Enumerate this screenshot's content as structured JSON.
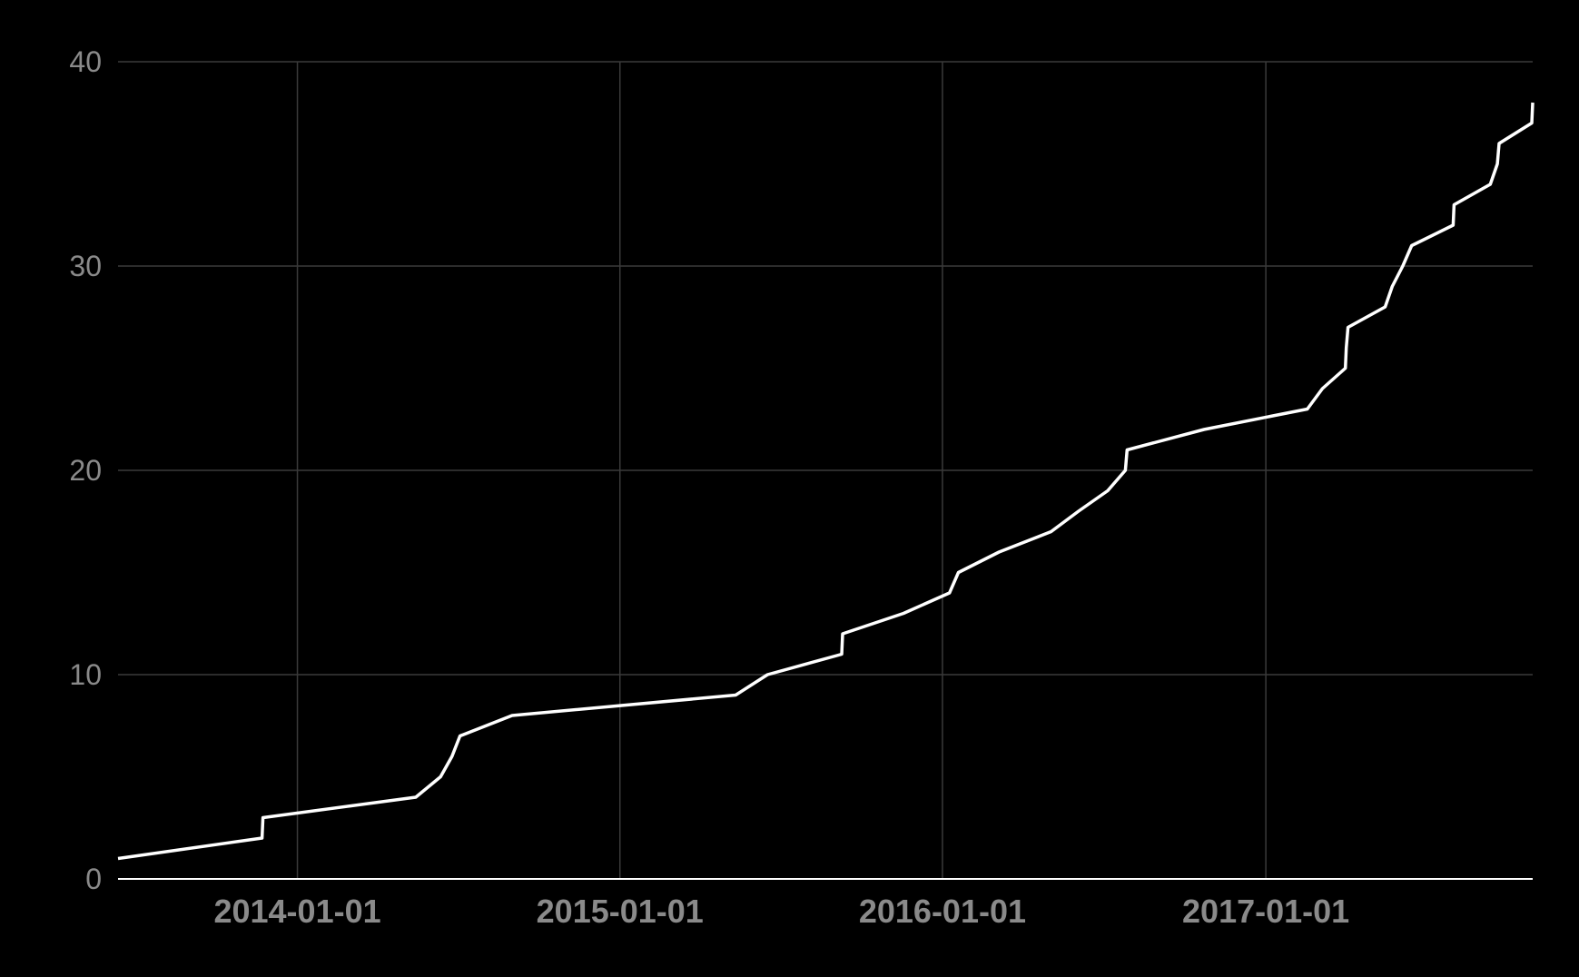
{
  "chart_data": {
    "type": "line",
    "title": "",
    "xlabel": "",
    "ylabel": "",
    "x_type": "date",
    "xlim": [
      "2013-06-12",
      "2017-10-30"
    ],
    "ylim": [
      0,
      40
    ],
    "x_ticks": [
      "2014-01-01",
      "2015-01-01",
      "2016-01-01",
      "2017-01-01"
    ],
    "y_ticks": [
      0,
      10,
      20,
      30,
      40
    ],
    "grid": true,
    "legend": "none",
    "colors": {
      "background": "#000000",
      "line": "#ffffff",
      "grid": "#3a3a3a",
      "tick_label": "#8a8a8a"
    },
    "series": [
      {
        "x": [
          "2013-06-12",
          "2013-11-22",
          "2013-11-23",
          "2014-05-15",
          "2014-06-12",
          "2014-06-25",
          "2014-07-04",
          "2014-09-01",
          "2015-05-12",
          "2015-06-17",
          "2015-09-09",
          "2015-09-10",
          "2015-11-18",
          "2016-01-09",
          "2016-01-19",
          "2016-03-05",
          "2016-05-03",
          "2016-06-03",
          "2016-07-06",
          "2016-07-26",
          "2016-07-28",
          "2016-10-23",
          "2017-02-17",
          "2017-03-06",
          "2017-04-01",
          "2017-04-02",
          "2017-04-04",
          "2017-05-16",
          "2017-05-24",
          "2017-06-05",
          "2017-06-15",
          "2017-08-01",
          "2017-08-02",
          "2017-09-12",
          "2017-09-20",
          "2017-09-22",
          "2017-10-29",
          "2017-10-30"
        ],
        "y": [
          1,
          2,
          3,
          4,
          5,
          6,
          7,
          8,
          9,
          10,
          11,
          12,
          13,
          14,
          15,
          16,
          17,
          18,
          19,
          20,
          21,
          22,
          23,
          24,
          25,
          26,
          27,
          28,
          29,
          30,
          31,
          32,
          33,
          34,
          35,
          36,
          37,
          38
        ]
      }
    ]
  }
}
